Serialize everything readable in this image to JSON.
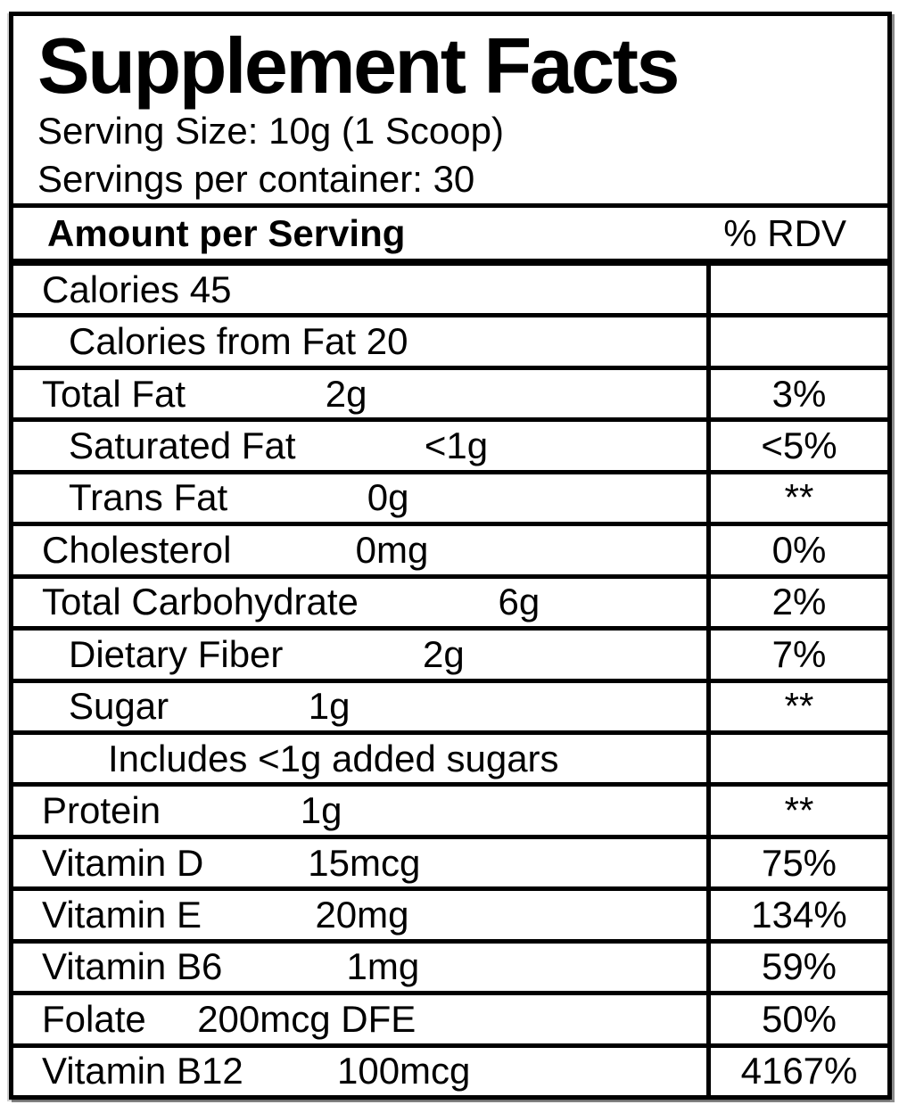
{
  "header": {
    "title": "Supplement Facts",
    "serving_size": "Serving Size: 10g (1 Scoop)",
    "servings_per_container": "Servings per container: 30"
  },
  "table": {
    "amount_header": "Amount per Serving",
    "rdv_header": "% RDV",
    "rows": [
      {
        "label": "Calories 45",
        "amount": "",
        "rdv": "",
        "indent": 0,
        "span": true
      },
      {
        "label": "Calories from Fat 20",
        "amount": "",
        "rdv": "",
        "indent": 1,
        "span": true
      },
      {
        "label": "Total Fat",
        "amount": "2g",
        "rdv": "3%",
        "indent": 0,
        "span": false
      },
      {
        "label": "Saturated Fat",
        "amount": "<1g",
        "rdv": "<5%",
        "indent": 1,
        "span": false
      },
      {
        "label": "Trans Fat",
        "amount": "0g",
        "rdv": "**",
        "indent": 1,
        "span": false
      },
      {
        "label": "Cholesterol",
        "amount": "0mg",
        "rdv": "0%",
        "indent": 0,
        "span": false
      },
      {
        "label": "Total Carbohydrate",
        "amount": "6g",
        "rdv": "2%",
        "indent": 0,
        "span": false
      },
      {
        "label": "Dietary Fiber",
        "amount": "2g",
        "rdv": "7%",
        "indent": 1,
        "span": false
      },
      {
        "label": "Sugar",
        "amount": "1g",
        "rdv": "**",
        "indent": 1,
        "span": false
      },
      {
        "label": "Includes <1g added sugars",
        "amount": "",
        "rdv": "",
        "indent": 2,
        "span": true
      },
      {
        "label": "Protein",
        "amount": "1g",
        "rdv": "**",
        "indent": 0,
        "span": false
      },
      {
        "label": "Vitamin D",
        "amount": "15mcg",
        "rdv": "75%",
        "indent": 0,
        "span": false
      },
      {
        "label": "Vitamin E",
        "amount": "20mg",
        "rdv": "134%",
        "indent": 0,
        "span": false
      },
      {
        "label": "Vitamin B6",
        "amount": "1mg",
        "rdv": "59%",
        "indent": 0,
        "span": false
      },
      {
        "label": "Folate",
        "amount": "200mcg DFE",
        "rdv": "50%",
        "indent": 0,
        "span": false
      },
      {
        "label": "Vitamin B12",
        "amount": "100mcg",
        "rdv": "4167%",
        "indent": 0,
        "span": false
      }
    ]
  },
  "colors": {
    "text": "#000000",
    "border": "#000000",
    "background": "#ffffff"
  }
}
